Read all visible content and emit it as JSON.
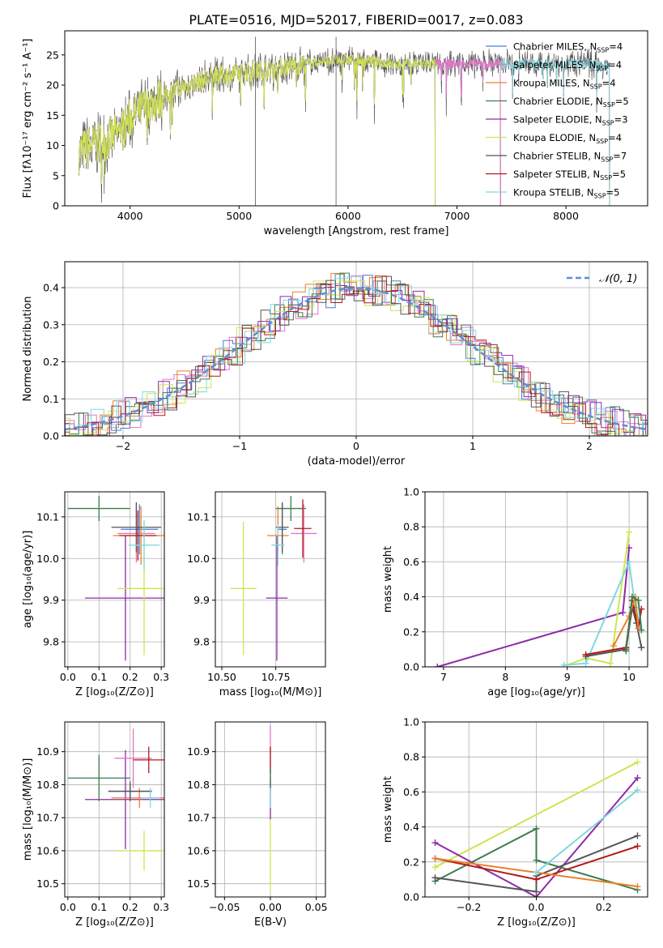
{
  "title": "PLATE=0516, MJD=52017, FIBERID=0017, z=0.083",
  "colors": {
    "Chabrier MILES": "#4c7bd6",
    "Salpeter MILES": "#e377c2",
    "Kroupa MILES": "#e8822a",
    "Chabrier ELODIE": "#3a7d4f",
    "Salpeter ELODIE": "#8e2aa8",
    "Kroupa ELODIE": "#cbe651",
    "Chabrier STELIB": "#555555",
    "Salpeter STELIB": "#b01a1a",
    "Kroupa STELIB": "#7fd8e0"
  },
  "chart_data": [
    {
      "id": "spectrum",
      "type": "line",
      "xlabel": "wavelength [Angstrom, rest frame]",
      "ylabel": "Flux [fλ10⁻¹⁷ erg cm⁻² s⁻¹ A⁻¹]",
      "xlim": [
        3400,
        8750
      ],
      "ylim": [
        0,
        29
      ],
      "xticks": [
        "4000",
        "5000",
        "6000",
        "7000",
        "8000"
      ],
      "yticks": [
        "0",
        "5",
        "10",
        "15",
        "20",
        "25"
      ],
      "grid": false,
      "legend_position": "right",
      "legend": [
        {
          "model": "Chabrier MILES",
          "nssp": "4"
        },
        {
          "model": "Salpeter MILES",
          "nssp": "4"
        },
        {
          "model": "Kroupa MILES",
          "nssp": "4"
        },
        {
          "model": "Chabrier ELODIE",
          "nssp": "5"
        },
        {
          "model": "Salpeter ELODIE",
          "nssp": "3"
        },
        {
          "model": "Kroupa ELODIE",
          "nssp": "4"
        },
        {
          "model": "Chabrier STELIB",
          "nssp": "7"
        },
        {
          "model": "Salpeter STELIB",
          "nssp": "5"
        },
        {
          "model": "Kroupa STELIB",
          "nssp": "5"
        }
      ],
      "continuum": {
        "x": [
          3530,
          3650,
          3800,
          3900,
          4000,
          4200,
          4400,
          4600,
          4800,
          5000,
          5200,
          5400,
          5600,
          5800,
          6000,
          6200,
          6400,
          6600,
          6800,
          7000,
          7200,
          7400,
          7600,
          7800,
          8000,
          8200,
          8400
        ],
        "y": [
          9,
          10,
          11,
          12,
          14.5,
          17,
          19,
          20.5,
          21.5,
          22,
          22.5,
          23,
          23.5,
          24,
          24.2,
          24,
          23.5,
          23.5,
          23.5,
          23.5,
          23.5,
          23.5,
          23.5,
          23.5,
          23.5,
          23.5,
          23
        ]
      },
      "end_wavelengths": {
        "MILES": 7400,
        "ELODIE": 6800,
        "STELIB": 8400
      }
    },
    {
      "id": "residuals",
      "type": "histogram",
      "xlabel": "(data-model)/error",
      "ylabel": "Normed distribution",
      "xlim": [
        -2.5,
        2.5
      ],
      "ylim": [
        0,
        0.47
      ],
      "xticks": [
        "−2",
        "−1",
        "0",
        "1",
        "2"
      ],
      "yticks": [
        "0.0",
        "0.1",
        "0.2",
        "0.3",
        "0.4"
      ],
      "grid": true,
      "reference_curve": "𝒩(0, 1)",
      "legend_position": "top-right"
    },
    {
      "id": "age_vs_Z",
      "type": "scatter_errorbar",
      "xlabel": "Z [log₁₀(Z/Z⊙)]",
      "ylabel": "age  [log₁₀(age/yr)]",
      "xlim": [
        -0.01,
        0.31
      ],
      "ylim": [
        9.74,
        10.16
      ],
      "xticks": [
        "0.0",
        "0.1",
        "0.2",
        "0.3"
      ],
      "yticks": [
        "9.8",
        "9.9",
        "10.0",
        "10.1"
      ],
      "grid": true,
      "points": [
        {
          "model": "Chabrier ELODIE",
          "x": 0.1,
          "xerr": 0.1,
          "y": 10.12,
          "yerr": 0.03
        },
        {
          "model": "Salpeter ELODIE",
          "x": 0.185,
          "xerr": 0.13,
          "y": 9.905,
          "yerr": 0.15
        },
        {
          "model": "Kroupa ELODIE",
          "x": 0.245,
          "xerr": 0.085,
          "y": 9.928,
          "yerr": 0.16
        },
        {
          "model": "Chabrier MILES",
          "x": 0.23,
          "xerr": 0.06,
          "y": 10.07,
          "yerr": 0.06
        },
        {
          "model": "Salpeter MILES",
          "x": 0.22,
          "xerr": 0.06,
          "y": 10.06,
          "yerr": 0.07
        },
        {
          "model": "Kroupa MILES",
          "x": 0.235,
          "xerr": 0.09,
          "y": 10.055,
          "yerr": 0.07
        },
        {
          "model": "Chabrier STELIB",
          "x": 0.22,
          "xerr": 0.08,
          "y": 10.075,
          "yerr": 0.06
        },
        {
          "model": "Salpeter STELIB",
          "x": 0.225,
          "xerr": 0.06,
          "y": 10.055,
          "yerr": 0.06
        },
        {
          "model": "Kroupa STELIB",
          "x": 0.245,
          "xerr": 0.05,
          "y": 10.032,
          "yerr": 0.06
        }
      ]
    },
    {
      "id": "age_vs_mass",
      "type": "scatter_errorbar",
      "xlabel": "mass [log₁₀(M/M⊙)]",
      "xlim": [
        10.47,
        10.98
      ],
      "ylim": [
        9.74,
        10.16
      ],
      "xticks": [
        "10.50",
        "10.75"
      ],
      "yticks": [
        "9.8",
        "9.9",
        "10.0",
        "10.1"
      ],
      "grid": true,
      "points": [
        {
          "model": "Chabrier ELODIE",
          "x": 10.82,
          "xerr": 0.07,
          "y": 10.12,
          "yerr": 0.03
        },
        {
          "model": "Salpeter ELODIE",
          "x": 10.755,
          "xerr": 0.05,
          "y": 9.905,
          "yerr": 0.15
        },
        {
          "model": "Kroupa ELODIE",
          "x": 10.6,
          "xerr": 0.06,
          "y": 9.928,
          "yerr": 0.16
        },
        {
          "model": "Chabrier MILES",
          "x": 10.78,
          "xerr": 0.02,
          "y": 10.07,
          "yerr": 0.06
        },
        {
          "model": "Salpeter MILES",
          "x": 10.88,
          "xerr": 0.06,
          "y": 10.06,
          "yerr": 0.07
        },
        {
          "model": "Kroupa MILES",
          "x": 10.76,
          "xerr": 0.05,
          "y": 10.055,
          "yerr": 0.07
        },
        {
          "model": "Chabrier STELIB",
          "x": 10.78,
          "xerr": 0.03,
          "y": 10.075,
          "yerr": 0.06
        },
        {
          "model": "Salpeter STELIB",
          "x": 10.875,
          "xerr": 0.04,
          "y": 10.072,
          "yerr": 0.07
        },
        {
          "model": "Kroupa STELIB",
          "x": 10.76,
          "xerr": 0.03,
          "y": 10.032,
          "yerr": 0.05
        }
      ]
    },
    {
      "id": "weight_vs_age",
      "type": "line",
      "xlabel": "age  [log₁₀(age/yr)]",
      "ylabel": "mass weight",
      "xlim": [
        6.7,
        10.3
      ],
      "ylim": [
        0,
        1.0
      ],
      "xticks": [
        "7",
        "8",
        "9",
        "10"
      ],
      "yticks": [
        "0.0",
        "0.2",
        "0.4",
        "0.6",
        "0.8",
        "1.0"
      ],
      "grid": true,
      "series": [
        {
          "model": "Salpeter ELODIE",
          "x": [
            6.9,
            9.9,
            10.0
          ],
          "y": [
            0.0,
            0.31,
            0.68
          ]
        },
        {
          "model": "Kroupa ELODIE",
          "x": [
            9.0,
            9.3,
            9.7,
            10.0
          ],
          "y": [
            0.01,
            0.05,
            0.02,
            0.77
          ]
        },
        {
          "model": "Kroupa STELIB",
          "x": [
            8.95,
            9.3,
            10.0,
            10.1,
            10.2
          ],
          "y": [
            0.01,
            0.02,
            0.6,
            0.34,
            0.21
          ]
        },
        {
          "model": "Chabrier STELIB",
          "x": [
            9.3,
            9.95,
            10.05,
            10.12,
            10.2
          ],
          "y": [
            0.06,
            0.1,
            0.34,
            0.25,
            0.11
          ]
        },
        {
          "model": "Salpeter STELIB",
          "x": [
            9.3,
            9.95,
            10.05,
            10.15,
            10.2
          ],
          "y": [
            0.07,
            0.11,
            0.38,
            0.22,
            0.33
          ]
        },
        {
          "model": "Kroupa MILES",
          "x": [
            9.75,
            10.0,
            10.1,
            10.15
          ],
          "y": [
            0.12,
            0.29,
            0.4,
            0.22
          ]
        },
        {
          "model": "Chabrier ELODIE",
          "x": [
            9.95,
            10.05,
            10.15,
            10.2
          ],
          "y": [
            0.09,
            0.4,
            0.38,
            0.21
          ]
        }
      ]
    },
    {
      "id": "mass_vs_Z",
      "type": "scatter_errorbar",
      "xlabel": "Z [log₁₀(Z/Z⊙)]",
      "ylabel": "mass [log₁₀(M/M⊙)]",
      "xlim": [
        -0.01,
        0.31
      ],
      "ylim": [
        10.46,
        10.99
      ],
      "xticks": [
        "0.0",
        "0.1",
        "0.2",
        "0.3"
      ],
      "yticks": [
        "10.5",
        "10.6",
        "10.7",
        "10.8",
        "10.9"
      ],
      "grid": true,
      "points": [
        {
          "model": "Chabrier ELODIE",
          "x": 0.1,
          "xerr": 0.1,
          "y": 10.82,
          "yerr": 0.07
        },
        {
          "model": "Salpeter ELODIE",
          "x": 0.185,
          "xerr": 0.13,
          "y": 10.755,
          "yerr": 0.15
        },
        {
          "model": "Kroupa ELODIE",
          "x": 0.245,
          "xerr": 0.085,
          "y": 10.6,
          "yerr": 0.06
        },
        {
          "model": "Chabrier MILES",
          "x": 0.2,
          "xerr": 0.07,
          "y": 10.78,
          "yerr": 0.02
        },
        {
          "model": "Salpeter MILES",
          "x": 0.21,
          "xerr": 0.06,
          "y": 10.88,
          "yerr": 0.09
        },
        {
          "model": "Kroupa MILES",
          "x": 0.23,
          "xerr": 0.09,
          "y": 10.76,
          "yerr": 0.03
        },
        {
          "model": "Chabrier STELIB",
          "x": 0.2,
          "xerr": 0.07,
          "y": 10.78,
          "yerr": 0.03
        },
        {
          "model": "Salpeter STELIB",
          "x": 0.26,
          "xerr": 0.05,
          "y": 10.875,
          "yerr": 0.04
        },
        {
          "model": "Kroupa STELIB",
          "x": 0.265,
          "xerr": 0.03,
          "y": 10.76,
          "yerr": 0.03
        }
      ]
    },
    {
      "id": "mass_vs_ebv",
      "type": "scatter_errorbar",
      "xlabel": "E(B-V)",
      "xlim": [
        -0.06,
        0.06
      ],
      "ylim": [
        10.46,
        10.99
      ],
      "xticks": [
        "−0.05",
        "0.00",
        "0.05"
      ],
      "yticks": [
        "10.5",
        "10.6",
        "10.7",
        "10.8",
        "10.9"
      ],
      "grid": true,
      "points": [
        {
          "model": "Kroupa ELODIE",
          "x": 0.0,
          "xerr": 0.0,
          "y": 10.6,
          "yerr": 0.12
        },
        {
          "model": "Salpeter ELODIE",
          "x": 0.0,
          "xerr": 0.0,
          "y": 10.755,
          "yerr": 0.06
        },
        {
          "model": "Salpeter MILES",
          "x": 0.0,
          "xerr": 0.0,
          "y": 10.88,
          "yerr": 0.1
        },
        {
          "model": "Salpeter STELIB",
          "x": 0.0,
          "xerr": 0.0,
          "y": 10.875,
          "yerr": 0.04
        },
        {
          "model": "Chabrier ELODIE",
          "x": 0.0,
          "xerr": 0.0,
          "y": 10.82,
          "yerr": 0.03
        },
        {
          "model": "Kroupa STELIB",
          "x": 0.0,
          "xerr": 0.0,
          "y": 10.76,
          "yerr": 0.03
        }
      ]
    },
    {
      "id": "weight_vs_Z",
      "type": "line",
      "xlabel": "Z [log₁₀(Z/Z⊙)]",
      "ylabel": "mass weight",
      "xlim": [
        -0.33,
        0.33
      ],
      "ylim": [
        0,
        1.0
      ],
      "xticks": [
        "−0.2",
        "0.0",
        "0.2"
      ],
      "yticks": [
        "0.0",
        "0.2",
        "0.4",
        "0.6",
        "0.8",
        "1.0"
      ],
      "grid": true,
      "series": [
        {
          "model": "Kroupa ELODIE",
          "x": [
            -0.3,
            0.3
          ],
          "y": [
            0.17,
            0.77
          ]
        },
        {
          "model": "Salpeter ELODIE",
          "x": [
            -0.3,
            0.0,
            0.3
          ],
          "y": [
            0.31,
            0.0,
            0.68
          ]
        },
        {
          "model": "Chabrier ELODIE",
          "x": [
            -0.3,
            0.0,
            0.0,
            0.3
          ],
          "y": [
            0.09,
            0.39,
            0.21,
            0.04
          ]
        },
        {
          "model": "Chabrier STELIB",
          "x": [
            -0.3,
            0.0,
            0.0,
            0.3
          ],
          "y": [
            0.11,
            0.03,
            0.12,
            0.35
          ]
        },
        {
          "model": "Salpeter STELIB",
          "x": [
            -0.3,
            0.0,
            0.3
          ],
          "y": [
            0.22,
            0.1,
            0.29
          ]
        },
        {
          "model": "Kroupa MILES",
          "x": [
            -0.3,
            0.3
          ],
          "y": [
            0.22,
            0.06
          ]
        },
        {
          "model": "Kroupa STELIB",
          "x": [
            0.0,
            0.3
          ],
          "y": [
            0.14,
            0.61
          ]
        }
      ]
    }
  ]
}
